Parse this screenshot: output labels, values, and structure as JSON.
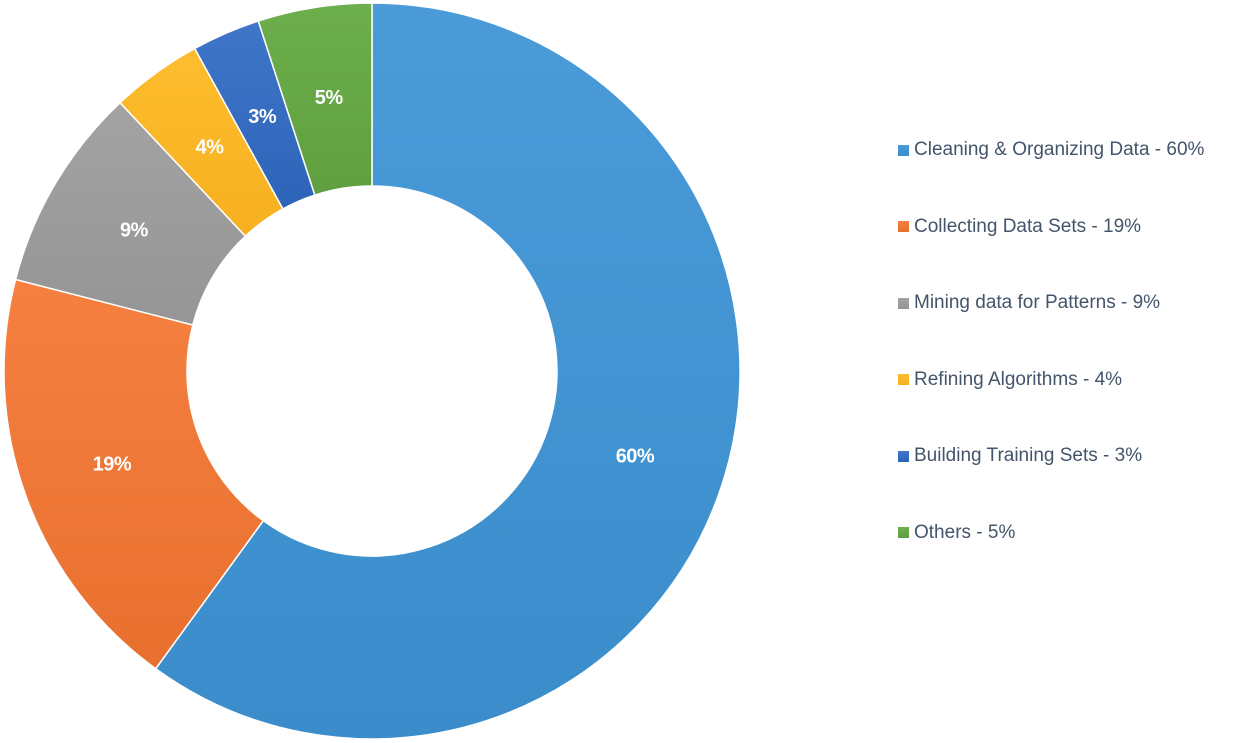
{
  "chart_data": {
    "type": "pie",
    "style": "donut",
    "legend_position": "right",
    "start_angle_deg": 0,
    "direction": "clockwise",
    "slices": [
      {
        "name": "Cleaning & Organizing Data - 60%",
        "value": 60,
        "label": "60%",
        "color": "#4a9bd8",
        "color_dark": "#3b8ccb"
      },
      {
        "name": "Collecting Data Sets - 19%",
        "value": 19,
        "label": "19%",
        "color": "#f58040",
        "color_dark": "#e8702f"
      },
      {
        "name": "Mining data for Patterns - 9%",
        "value": 9,
        "label": "9%",
        "color": "#a3a3a3",
        "color_dark": "#959595"
      },
      {
        "name": "Refining Algorithms - 4%",
        "value": 4,
        "label": "4%",
        "color": "#fdbd2e",
        "color_dark": "#f7b020"
      },
      {
        "name": "Building Training Sets - 3%",
        "value": 3,
        "label": "3%",
        "color": "#3f76c8",
        "color_dark": "#2e64b8"
      },
      {
        "name": "Others - 5%",
        "value": 5,
        "label": "5%",
        "color": "#6daf4c",
        "color_dark": "#5f9f3f"
      }
    ]
  }
}
